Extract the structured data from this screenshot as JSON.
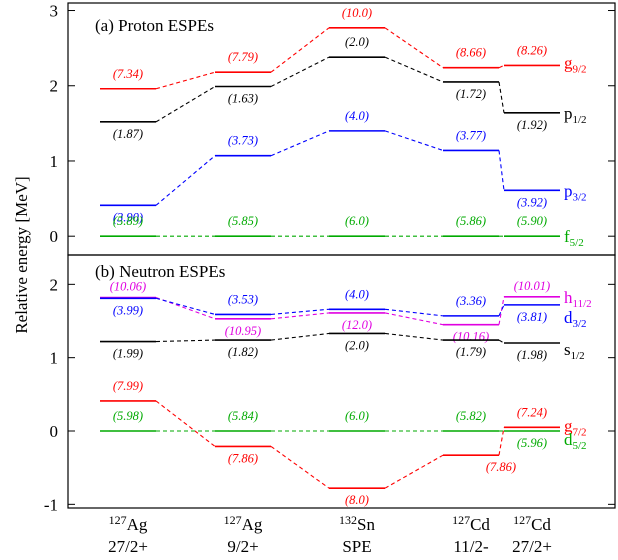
{
  "chart_data": {
    "type": "line",
    "ylabel": "Relative energy [MeV]",
    "categories": [
      {
        "nucleus": "Ag",
        "mass": "127",
        "label": "27/2+"
      },
      {
        "nucleus": "Ag",
        "mass": "127",
        "label": "9/2+"
      },
      {
        "nucleus": "Sn",
        "mass": "132",
        "label": "SPE"
      },
      {
        "nucleus": "Cd",
        "mass": "127",
        "label": "11/2-"
      },
      {
        "nucleus": "Cd",
        "mass": "127",
        "label": "27/2+"
      }
    ],
    "panels": [
      {
        "title": "(a) Proton ESPEs",
        "ylim": [
          -0.25,
          3.1
        ],
        "yticks": [
          0,
          1,
          2,
          3
        ],
        "series": [
          {
            "name": "g",
            "sub": "9/2",
            "color": "#ff0000",
            "values": [
              1.96,
              2.18,
              2.77,
              2.24,
              2.27
            ],
            "occupancies": [
              "(7.34)",
              "(7.79)",
              "(10.0)",
              "(8.66)",
              "(8.26)"
            ]
          },
          {
            "name": "p",
            "sub": "1/2",
            "color": "#000000",
            "values": [
              1.52,
              1.99,
              2.38,
              2.05,
              1.64
            ],
            "occupancies": [
              "(1.87)",
              "(1.63)",
              "(2.0)",
              "(1.72)",
              "(1.92)"
            ]
          },
          {
            "name": "p",
            "sub": "3/2",
            "color": "#0000ff",
            "values": [
              0.41,
              1.07,
              1.4,
              1.14,
              0.61
            ],
            "occupancies": [
              "(3.90)",
              "(3.73)",
              "(4.0)",
              "(3.77)",
              "(3.92)"
            ]
          },
          {
            "name": "f",
            "sub": "5/2",
            "color": "#00aa00",
            "values": [
              0.0,
              0.0,
              0.0,
              0.0,
              0.0
            ],
            "occupancies": [
              "(5.89)",
              "(5.85)",
              "(6.0)",
              "(5.86)",
              "(5.90)"
            ]
          }
        ]
      },
      {
        "title": "(b) Neutron ESPEs",
        "ylim": [
          -1.05,
          2.4
        ],
        "yticks": [
          -1,
          0,
          1,
          2
        ],
        "series": [
          {
            "name": "h",
            "sub": "11/2",
            "color": "#e000e0",
            "values": [
              1.82,
              1.53,
              1.61,
              1.45,
              1.83
            ],
            "occupancies": [
              "(10.06)",
              "(10.95)",
              "(12.0)",
              "(10.16)",
              "(10.01)"
            ]
          },
          {
            "name": "d",
            "sub": "3/2",
            "color": "#0000ff",
            "values": [
              1.81,
              1.59,
              1.66,
              1.57,
              1.72
            ],
            "occupancies": [
              "(3.99)",
              "(3.53)",
              "(4.0)",
              "(3.36)",
              "(3.81)"
            ]
          },
          {
            "name": "s",
            "sub": "1/2",
            "color": "#000000",
            "values": [
              1.22,
              1.24,
              1.33,
              1.24,
              1.2
            ],
            "occupancies": [
              "(1.99)",
              "(1.82)",
              "(2.0)",
              "(1.79)",
              "(1.98)"
            ]
          },
          {
            "name": "g",
            "sub": "7/2",
            "color": "#ff0000",
            "values": [
              0.41,
              -0.21,
              -0.78,
              -0.33,
              0.05
            ],
            "occupancies": [
              "(7.99)",
              "(7.86)",
              "(8.0)",
              "(7.86)",
              "(7.24)"
            ]
          },
          {
            "name": "d",
            "sub": "5/2",
            "color": "#00aa00",
            "values": [
              0.0,
              0.0,
              0.0,
              0.0,
              0.0
            ],
            "occupancies": [
              "(5.98)",
              "(5.84)",
              "(6.0)",
              "(5.82)",
              "(5.96)"
            ]
          }
        ]
      }
    ]
  }
}
